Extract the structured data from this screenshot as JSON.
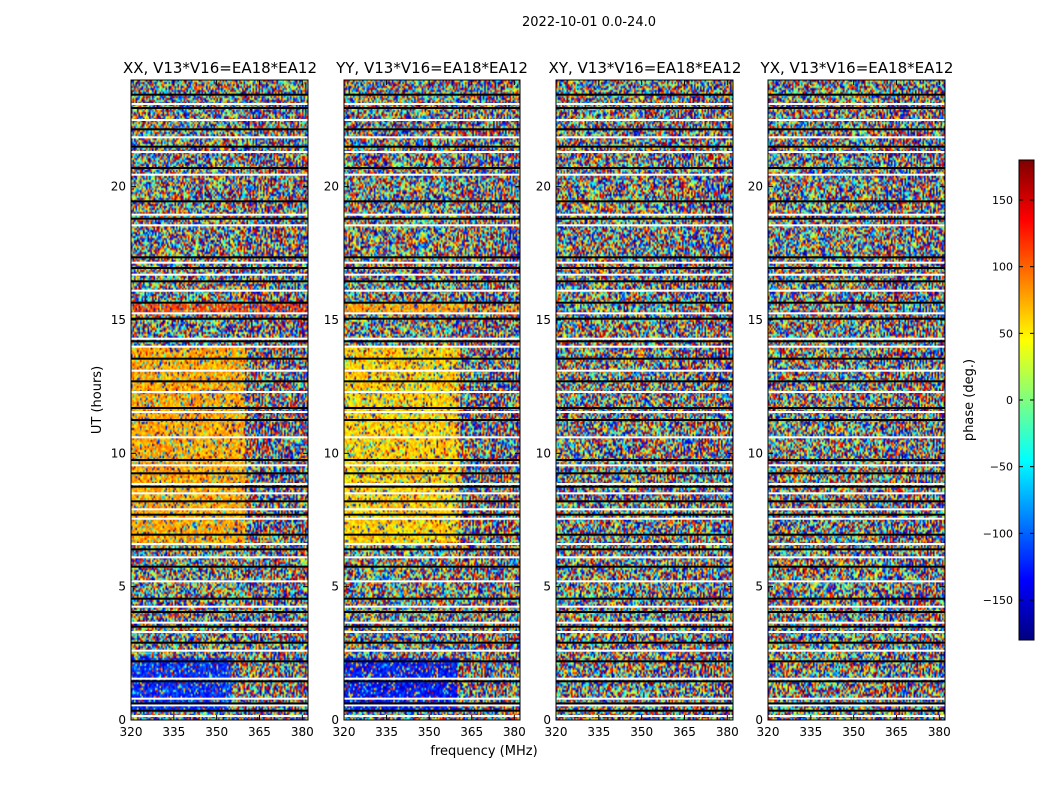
{
  "figure": {
    "suptitle": "2022-10-01 0.0-24.0"
  },
  "chart_data": [
    {
      "type": "heatmap",
      "title": "XX, V13*V16=EA18*EA12",
      "xlabel": "",
      "ylabel": "UT (hours)",
      "x_range": [
        320,
        382
      ],
      "y_range": [
        0,
        24
      ],
      "x_ticks": [
        "320",
        "335",
        "350",
        "365",
        "380"
      ],
      "y_ticks": [
        "0",
        "5",
        "10",
        "15",
        "20"
      ],
      "value_range": [
        -180,
        180
      ],
      "features": [
        {
          "desc": "coherent phase region",
          "x": [
            320,
            360
          ],
          "y": [
            6.5,
            14.0
          ],
          "phase": 75
        },
        {
          "desc": "coherent phase region",
          "x": [
            320,
            355
          ],
          "y": [
            0.3,
            2.3
          ],
          "phase": -120
        },
        {
          "desc": "coherent phase region",
          "x": [
            320,
            382
          ],
          "y": [
            15.2,
            15.6
          ],
          "phase": 110
        }
      ]
    },
    {
      "type": "heatmap",
      "title": "YY, V13*V16=EA18*EA12",
      "xlabel": "frequency (MHz)",
      "ylabel": "",
      "x_range": [
        320,
        382
      ],
      "y_range": [
        0,
        24
      ],
      "x_ticks": [
        "320",
        "335",
        "350",
        "365",
        "380"
      ],
      "y_ticks": [
        "0",
        "5",
        "10",
        "15",
        "20"
      ],
      "value_range": [
        -180,
        180
      ],
      "features": [
        {
          "desc": "coherent phase region",
          "x": [
            320,
            361
          ],
          "y": [
            6.5,
            14.0
          ],
          "phase": 60
        },
        {
          "desc": "coherent phase region",
          "x": [
            320,
            360
          ],
          "y": [
            0.3,
            2.3
          ],
          "phase": -130
        },
        {
          "desc": "coherent phase region",
          "x": [
            320,
            382
          ],
          "y": [
            15.2,
            15.6
          ],
          "phase": 80
        }
      ]
    },
    {
      "type": "heatmap",
      "title": "XY, V13*V16=EA18*EA12",
      "xlabel": "",
      "ylabel": "",
      "x_range": [
        320,
        382
      ],
      "y_range": [
        0,
        24
      ],
      "x_ticks": [
        "320",
        "335",
        "350",
        "365",
        "380"
      ],
      "y_ticks": [
        "0",
        "5",
        "10",
        "15",
        "20"
      ],
      "value_range": [
        -180,
        180
      ],
      "features": []
    },
    {
      "type": "heatmap",
      "title": "YX, V13*V16=EA18*EA12",
      "xlabel": "",
      "ylabel": "",
      "x_range": [
        320,
        382
      ],
      "y_range": [
        0,
        24
      ],
      "x_ticks": [
        "320",
        "335",
        "350",
        "365",
        "380"
      ],
      "y_ticks": [
        "0",
        "5",
        "10",
        "15",
        "20"
      ],
      "value_range": [
        -180,
        180
      ],
      "features": []
    }
  ],
  "colorbar": {
    "label": "phase (deg.)",
    "range": [
      -180,
      180
    ],
    "ticks": [
      "150",
      "100",
      "50",
      "0",
      "−50",
      "−100",
      "−150"
    ],
    "tick_values": [
      150,
      100,
      50,
      0,
      -50,
      -100,
      -150
    ],
    "colormap": "jet",
    "colors": [
      "#00007f",
      "#0000ff",
      "#007fff",
      "#00ffff",
      "#7fff7f",
      "#ffff00",
      "#ff7f00",
      "#ff0000",
      "#7f0000"
    ]
  },
  "flagged_hours": [
    0.15,
    0.35,
    0.55,
    0.62,
    0.8,
    1.45,
    1.55,
    2.2,
    2.6,
    2.9,
    3.3,
    3.5,
    3.65,
    4.05,
    4.25,
    4.55,
    5.2,
    5.75,
    6.1,
    6.4,
    6.6,
    6.95,
    7.55,
    7.7,
    7.9,
    8.2,
    8.5,
    8.75,
    8.85,
    9.25,
    9.55,
    9.75,
    10.6,
    11.25,
    11.55,
    11.7,
    12.3,
    12.7,
    13.1,
    13.55,
    14.0,
    14.2,
    14.3,
    15.05,
    15.25,
    15.65,
    16.1,
    16.45,
    16.7,
    16.95,
    17.15,
    17.35,
    18.55,
    18.8,
    18.95,
    19.45,
    20.45,
    20.7,
    21.3,
    21.5,
    21.85,
    22.15,
    22.5,
    22.95,
    23.1,
    23.45
  ]
}
